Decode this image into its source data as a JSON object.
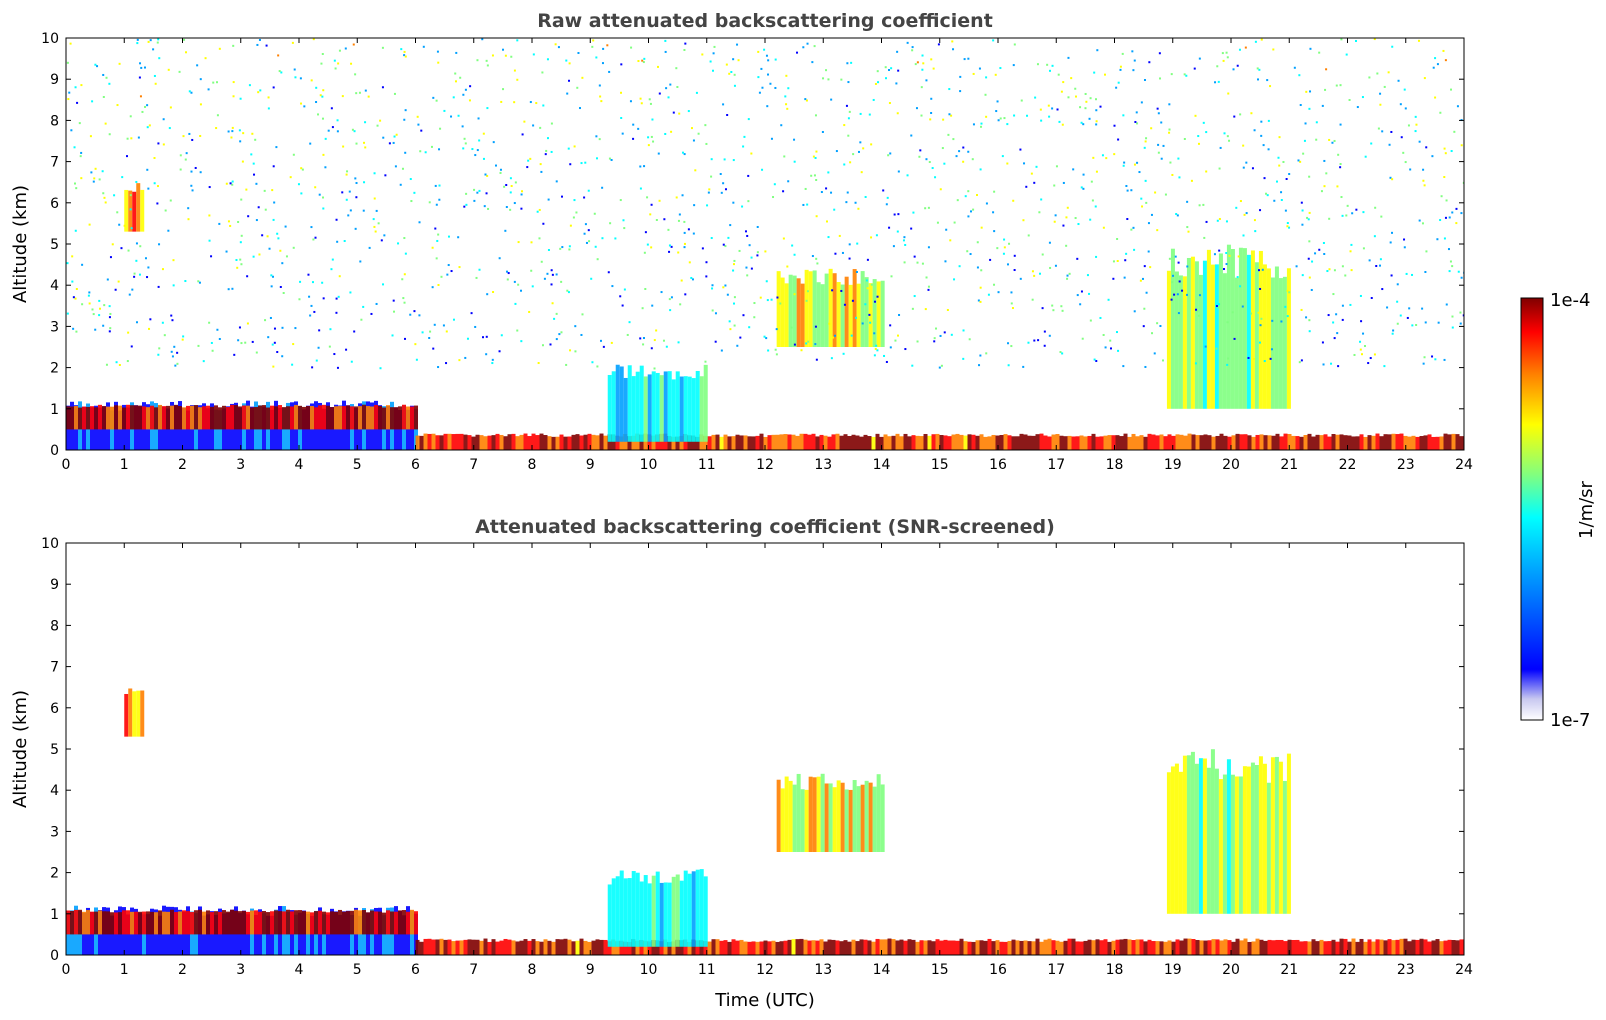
{
  "chart_data": [
    {
      "type": "heatmap",
      "title": "Raw attenuated backscattering coefficient",
      "xlabel": "",
      "ylabel": "Altitude (km)",
      "xlim": [
        0,
        24
      ],
      "ylim": [
        0,
        10
      ],
      "xticks": [
        "0",
        "1",
        "2",
        "3",
        "4",
        "5",
        "6",
        "7",
        "8",
        "9",
        "10",
        "11",
        "12",
        "13",
        "14",
        "15",
        "16",
        "17",
        "18",
        "19",
        "20",
        "21",
        "22",
        "23",
        "24"
      ],
      "yticks": [
        "0",
        "1",
        "2",
        "3",
        "4",
        "5",
        "6",
        "7",
        "8",
        "9",
        "10"
      ],
      "screened": false,
      "features": [
        {
          "name": "boundary-layer",
          "x": [
            0,
            6
          ],
          "y": [
            0,
            1.2
          ],
          "level": 0.25
        },
        {
          "name": "cloud-base",
          "x": [
            0,
            6
          ],
          "y": [
            0.5,
            1.1
          ],
          "level": 0.95
        },
        {
          "name": "surface-layer",
          "x": [
            6,
            24
          ],
          "y": [
            0,
            0.4
          ],
          "level": 0.9
        },
        {
          "name": "cloud-1",
          "x": [
            1.0,
            1.3
          ],
          "y": [
            5.3,
            6.5
          ],
          "level": 0.75
        },
        {
          "name": "cloud-2",
          "x": [
            12.2,
            14.0
          ],
          "y": [
            2.5,
            4.4
          ],
          "level": 0.65
        },
        {
          "name": "cloud-3",
          "x": [
            18.9,
            21.0
          ],
          "y": [
            1.0,
            5.0
          ],
          "level": 0.6
        },
        {
          "name": "precip-columns",
          "x": [
            9.3,
            11.0
          ],
          "y": [
            0.2,
            2.1
          ],
          "level": 0.45
        },
        {
          "name": "background-noise",
          "x": [
            0,
            24
          ],
          "y": [
            2,
            10
          ],
          "level": 0.4
        }
      ]
    },
    {
      "type": "heatmap",
      "title": "Attenuated backscattering coefficient (SNR-screened)",
      "xlabel": "Time (UTC)",
      "ylabel": "Altitude (km)",
      "xlim": [
        0,
        24
      ],
      "ylim": [
        0,
        10
      ],
      "xticks": [
        "0",
        "1",
        "2",
        "3",
        "4",
        "5",
        "6",
        "7",
        "8",
        "9",
        "10",
        "11",
        "12",
        "13",
        "14",
        "15",
        "16",
        "17",
        "18",
        "19",
        "20",
        "21",
        "22",
        "23",
        "24"
      ],
      "yticks": [
        "0",
        "1",
        "2",
        "3",
        "4",
        "5",
        "6",
        "7",
        "8",
        "9",
        "10"
      ],
      "screened": true,
      "features": [
        {
          "name": "boundary-layer",
          "x": [
            0,
            6
          ],
          "y": [
            0,
            1.2
          ],
          "level": 0.25
        },
        {
          "name": "cloud-base",
          "x": [
            0,
            6
          ],
          "y": [
            0.5,
            1.1
          ],
          "level": 0.95
        },
        {
          "name": "surface-layer",
          "x": [
            6,
            24
          ],
          "y": [
            0,
            0.4
          ],
          "level": 0.9
        },
        {
          "name": "cloud-1",
          "x": [
            1.0,
            1.3
          ],
          "y": [
            5.3,
            6.5
          ],
          "level": 0.75
        },
        {
          "name": "cloud-2",
          "x": [
            12.2,
            14.0
          ],
          "y": [
            2.5,
            4.4
          ],
          "level": 0.65
        },
        {
          "name": "cloud-3",
          "x": [
            18.9,
            21.0
          ],
          "y": [
            1.0,
            5.0
          ],
          "level": 0.6
        },
        {
          "name": "precip-columns",
          "x": [
            9.3,
            11.0
          ],
          "y": [
            0.2,
            2.1
          ],
          "level": 0.45
        }
      ]
    }
  ],
  "colorbar": {
    "max_label": "1e-4",
    "min_label": "1e-7",
    "unit_label": "1/m/sr",
    "colormap": [
      "#ffffff",
      "#c8c8f0",
      "#0000ff",
      "#00a0ff",
      "#00ffff",
      "#80ff80",
      "#ffff00",
      "#ff8000",
      "#ff0000",
      "#800000"
    ]
  }
}
